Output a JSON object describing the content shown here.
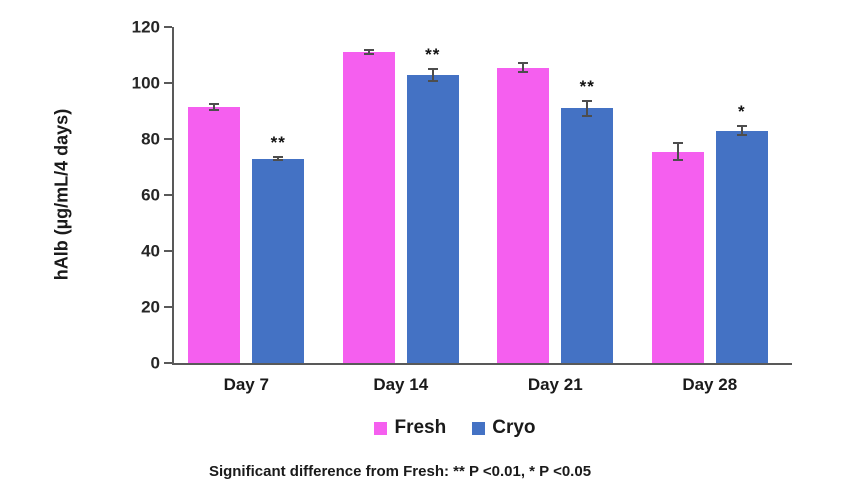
{
  "chart_data": {
    "type": "bar",
    "title": "",
    "xlabel": "",
    "ylabel": "hAlb (µg/mL/4 days)",
    "ylim": [
      0,
      120
    ],
    "yticks": [
      0,
      20,
      40,
      60,
      80,
      100,
      120
    ],
    "grid": false,
    "legend_position": "bottom",
    "categories": [
      "Day 7",
      "Day 14",
      "Day 21",
      "Day 28"
    ],
    "series": [
      {
        "name": "Fresh",
        "color": "#F55FEF",
        "values": [
          91.5,
          111,
          105.5,
          75.5
        ],
        "errors": [
          1.5,
          1,
          2,
          3.5
        ],
        "significance": [
          "",
          "",
          "",
          ""
        ]
      },
      {
        "name": "Cryo",
        "color": "#4472C4",
        "values": [
          73,
          103,
          91,
          83
        ],
        "errors": [
          1,
          2.5,
          3,
          2
        ],
        "significance": [
          "**",
          "**",
          "**",
          "*"
        ]
      }
    ]
  },
  "caption": "Significant difference from Fresh: ** P <0.01, * P <0.05",
  "colors": {
    "axis": "#595959",
    "error_bar": "#4d4d4d",
    "text": "#1a1a1a"
  }
}
